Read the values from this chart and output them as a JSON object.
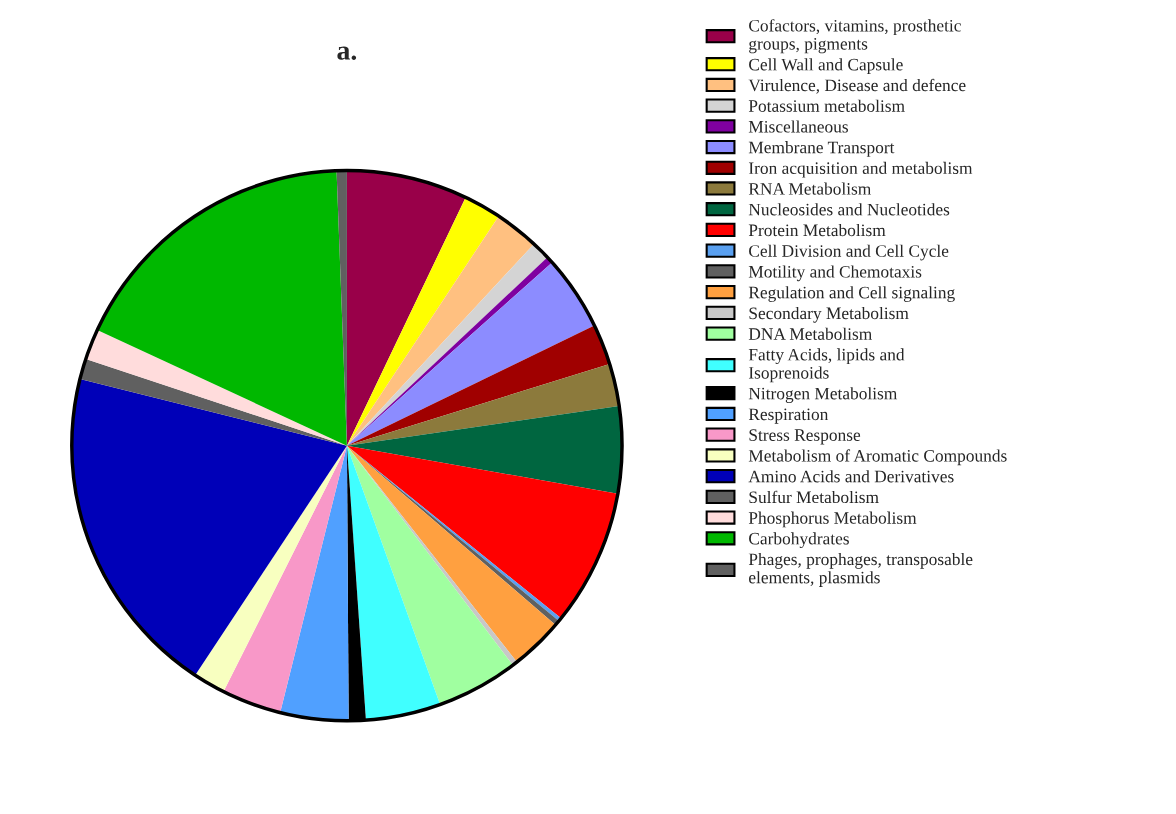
{
  "chart_data": {
    "type": "pie",
    "title": "a.",
    "legend": "right",
    "categories": [
      "Cofactors, vitamins, prosthetic groups, pigments",
      "Cell Wall and Capsule",
      "Virulence, Disease and defence",
      "Potassium metabolism",
      "Miscellaneous",
      "Membrane Transport",
      "Iron acquisition and metabolism",
      "RNA Metabolism",
      "Nucleosides and Nucleotides",
      "Protein Metabolism",
      "Cell Division and Cell Cycle",
      "Motility and Chemotaxis",
      "Regulation and Cell signaling",
      "Secondary Metabolism",
      "DNA Metabolism",
      "Fatty Acids, lipids and Isoprenoids",
      "Nitrogen Metabolism",
      "Respiration",
      "Stress Response",
      "Metabolism of Aromatic Compounds",
      "Amino Acids and Derivatives",
      "Sulfur Metabolism",
      "Phosphorus Metabolism",
      "Carbohydrates",
      "Phages, prophages, transposable elements, plasmids"
    ],
    "values": [
      7.1,
      2.2,
      2.6,
      1.1,
      0.4,
      4.4,
      2.4,
      2.5,
      5.1,
      8.0,
      0.2,
      0.3,
      3.1,
      0.3,
      4.8,
      4.4,
      1.0,
      4.0,
      3.5,
      1.9,
      19.6,
      1.2,
      1.8,
      17.5,
      0.6
    ],
    "colors": [
      "#990049",
      "#ffff00",
      "#ffc080",
      "#d4d4d4",
      "#7f00a0",
      "#8c8cff",
      "#a00000",
      "#8c7a3c",
      "#006640",
      "#ff0000",
      "#5aa0f0",
      "#606060",
      "#ffa040",
      "#c8c8c8",
      "#a0ffa0",
      "#40ffff",
      "#000000",
      "#50a0ff",
      "#f898c8",
      "#f8ffc0",
      "#0000b8",
      "#606060",
      "#ffdcdc",
      "#00b800",
      "#606060"
    ]
  }
}
